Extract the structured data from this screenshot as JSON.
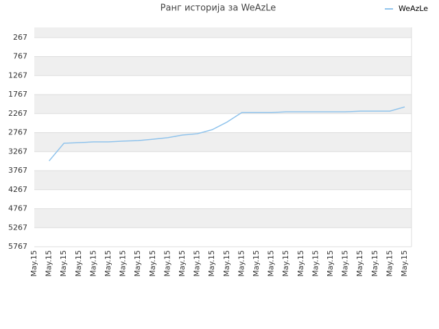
{
  "chart_data": {
    "type": "line",
    "title": "Ранг историја за WeAzLe",
    "categories": [
      "May.15",
      "May.15",
      "May.15",
      "May.15",
      "May.15",
      "May.15",
      "May.15",
      "May.15",
      "May.15",
      "May.15",
      "May.15",
      "May.15",
      "May.15",
      "May.15",
      "May.15",
      "May.15",
      "May.15",
      "May.15",
      "May.15",
      "May.15",
      "May.15",
      "May.15",
      "May.15",
      "May.15",
      "May.15",
      "May.15"
    ],
    "series": [
      {
        "name": "WeAzLe",
        "color": "#8fc3ec",
        "values": [
          null,
          3510,
          3046,
          3030,
          3010,
          3010,
          2990,
          2975,
          2940,
          2900,
          2830,
          2795,
          2690,
          2490,
          2240,
          2240,
          2240,
          2220,
          2220,
          2220,
          2220,
          2220,
          2200,
          2200,
          2200,
          2090
        ]
      }
    ],
    "ylim": [
      5767,
      0
    ],
    "yticks": [
      267,
      767,
      1267,
      1767,
      2267,
      2767,
      3267,
      3767,
      4267,
      4767,
      5267,
      5767
    ],
    "grid": true,
    "legend": "top-right"
  }
}
